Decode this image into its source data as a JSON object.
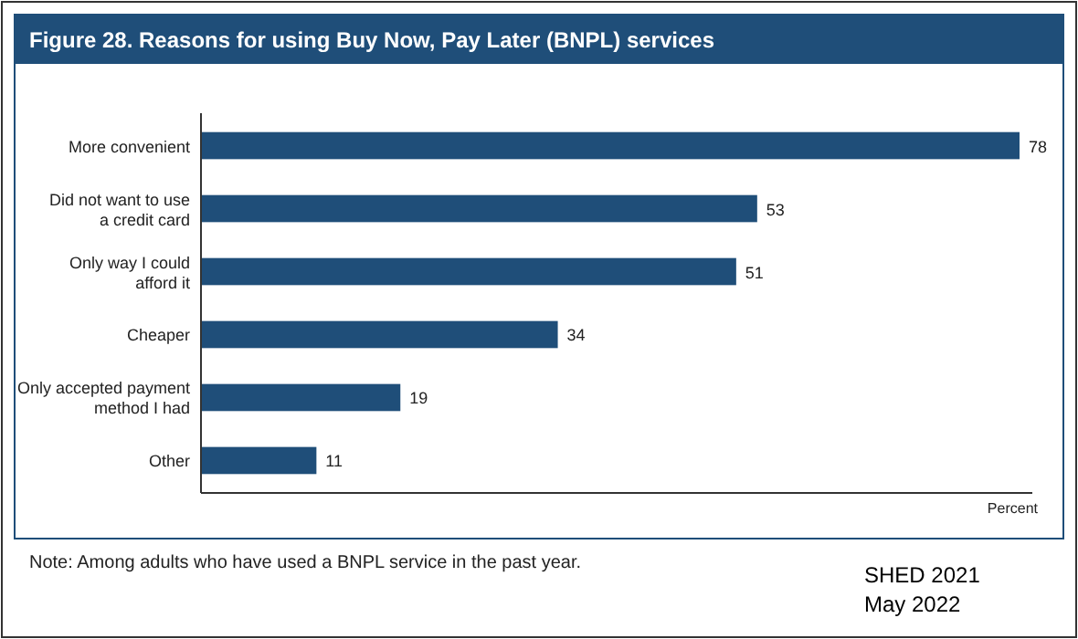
{
  "chart_data": {
    "type": "bar",
    "orientation": "horizontal",
    "title": "Figure 28. Reasons for using Buy Now, Pay Later (BNPL) services",
    "xlabel": "Percent",
    "categories": [
      "More convenient",
      "Did not want to use\na credit card",
      "Only way I could\nafford it",
      "Cheaper",
      "Only accepted payment\nmethod I had",
      "Other"
    ],
    "values": [
      78,
      53,
      51,
      34,
      19,
      11
    ],
    "color": "#1f4e79",
    "data_labels": true,
    "annotations": [
      "Note: Among adults who have used a BNPL service in the past year.",
      "SHED 2021\nMay 2022"
    ]
  }
}
